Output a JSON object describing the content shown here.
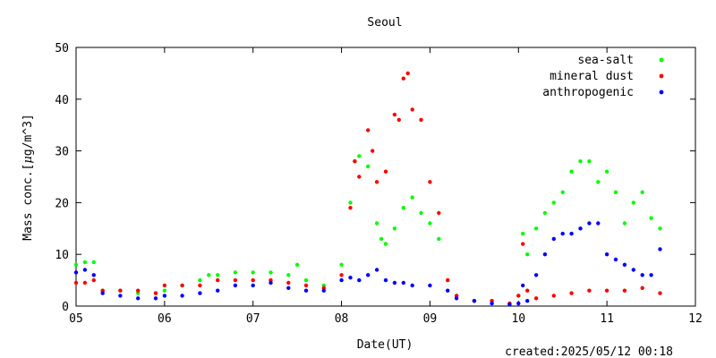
{
  "chart_data": {
    "type": "scatter",
    "title": "Seoul",
    "xlabel": "Date(UT)",
    "ylabel_prefix": "Mass conc.[",
    "ylabel_mu": "μ",
    "ylabel_suffix": "g/m^3]",
    "xlim": [
      5,
      12
    ],
    "ylim": [
      0,
      50
    ],
    "x_ticks": [
      5,
      6,
      7,
      8,
      9,
      10,
      11,
      12
    ],
    "x_tick_labels": [
      "05",
      "06",
      "07",
      "08",
      "09",
      "10",
      "11",
      "12"
    ],
    "y_ticks": [
      0,
      10,
      20,
      30,
      40,
      50
    ],
    "y_tick_labels": [
      "0",
      "10",
      "20",
      "30",
      "40",
      "50"
    ],
    "grid": false,
    "legend_position": "top-right",
    "series": [
      {
        "name": "sea-salt",
        "color": "#00ff00",
        "x": [
          5.0,
          5.1,
          5.2,
          5.3,
          5.5,
          5.7,
          5.9,
          6.0,
          6.2,
          6.4,
          6.5,
          6.6,
          6.8,
          7.0,
          7.2,
          7.4,
          7.5,
          7.6,
          7.8,
          8.0,
          8.1,
          8.15,
          8.2,
          8.3,
          8.4,
          8.45,
          8.5,
          8.6,
          8.7,
          8.8,
          8.9,
          9.0,
          9.1,
          9.2,
          9.3,
          9.5,
          9.7,
          9.9,
          10.0,
          10.05,
          10.1,
          10.2,
          10.3,
          10.4,
          10.5,
          10.6,
          10.7,
          10.8,
          10.9,
          11.0,
          11.1,
          11.2,
          11.3,
          11.4,
          11.5,
          11.6
        ],
        "y": [
          8,
          8.5,
          8.5,
          3,
          3,
          2.5,
          2.5,
          3,
          4,
          5,
          6,
          6,
          6.5,
          6.5,
          6.5,
          6,
          8,
          5,
          4,
          8,
          20,
          28,
          29,
          27,
          16,
          13,
          12,
          15,
          19,
          21,
          18,
          16,
          13,
          5,
          2,
          1,
          1,
          0.5,
          2,
          14,
          10,
          15,
          18,
          20,
          22,
          26,
          28,
          28,
          24,
          26,
          22,
          16,
          20,
          22,
          17,
          15
        ]
      },
      {
        "name": "mineral dust",
        "color": "#ff0000",
        "x": [
          5.0,
          5.1,
          5.2,
          5.3,
          5.5,
          5.7,
          5.9,
          6.0,
          6.2,
          6.4,
          6.6,
          6.8,
          7.0,
          7.2,
          7.4,
          7.6,
          7.8,
          8.0,
          8.1,
          8.15,
          8.2,
          8.3,
          8.35,
          8.4,
          8.5,
          8.6,
          8.65,
          8.7,
          8.75,
          8.8,
          8.9,
          9.0,
          9.1,
          9.2,
          9.3,
          9.5,
          9.7,
          9.9,
          10.0,
          10.05,
          10.1,
          10.2,
          10.4,
          10.6,
          10.8,
          11.0,
          11.2,
          11.4,
          11.6
        ],
        "y": [
          4.5,
          4.5,
          5,
          3,
          3,
          3,
          2.5,
          4,
          4,
          4,
          5,
          5,
          5,
          5,
          4.5,
          4,
          3.5,
          6,
          19,
          28,
          25,
          34,
          30,
          24,
          26,
          37,
          36,
          44,
          45,
          38,
          36,
          24,
          18,
          5,
          2,
          1,
          1,
          0.5,
          2,
          12,
          3,
          1.5,
          2,
          2.5,
          3,
          3,
          3,
          3.5,
          2.5
        ]
      },
      {
        "name": "anthropogenic",
        "color": "#0000ff",
        "x": [
          5.0,
          5.1,
          5.2,
          5.3,
          5.5,
          5.7,
          5.9,
          6.0,
          6.2,
          6.4,
          6.6,
          6.8,
          7.0,
          7.2,
          7.4,
          7.6,
          7.8,
          8.0,
          8.1,
          8.2,
          8.3,
          8.4,
          8.5,
          8.6,
          8.7,
          8.8,
          9.0,
          9.2,
          9.3,
          9.5,
          9.7,
          9.9,
          10.0,
          10.05,
          10.1,
          10.2,
          10.3,
          10.4,
          10.5,
          10.6,
          10.7,
          10.8,
          10.9,
          11.0,
          11.1,
          11.2,
          11.3,
          11.4,
          11.5,
          11.6
        ],
        "y": [
          6.5,
          7,
          6,
          2.5,
          2,
          1.5,
          1.5,
          2,
          2,
          2.5,
          3,
          4,
          4,
          4.5,
          3.5,
          3,
          3,
          5,
          5.5,
          5,
          6,
          7,
          5,
          4.5,
          4.5,
          4,
          4,
          3,
          1.5,
          1,
          0.5,
          0.3,
          0.5,
          4,
          1,
          6,
          10,
          13,
          14,
          14,
          15,
          16,
          16,
          10,
          9,
          8,
          7,
          6,
          6,
          11
        ]
      }
    ]
  },
  "footer": {
    "created": "created:2025/05/12 00:18"
  }
}
